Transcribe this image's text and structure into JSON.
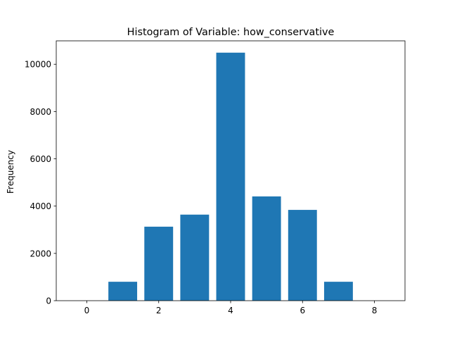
{
  "chart_data": {
    "type": "bar",
    "title": "Histogram of Variable: how_conservative",
    "xlabel": "",
    "ylabel": "Frequency",
    "x": [
      1,
      2,
      3,
      4,
      5,
      6,
      7
    ],
    "values": [
      800,
      3130,
      3640,
      10490,
      4410,
      3840,
      800
    ],
    "bar_width": 0.8,
    "xlim": [
      -0.85,
      8.85
    ],
    "ylim": [
      0,
      10990
    ],
    "xticks": [
      0,
      2,
      4,
      6,
      8
    ],
    "yticks": [
      0,
      2000,
      4000,
      6000,
      8000,
      10000
    ],
    "color": "#1f77b4",
    "grid": false,
    "legend": "none"
  }
}
